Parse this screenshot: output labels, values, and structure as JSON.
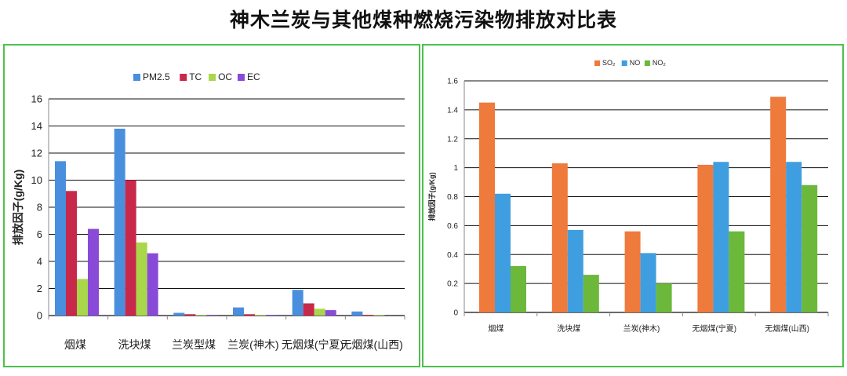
{
  "title": "神木兰炭与其他煤种燃烧污染物排放对比表",
  "colors": {
    "pm25": "#4a8fde",
    "tc": "#c8284a",
    "oc": "#a8d84a",
    "ec": "#8a4ad8",
    "so2": "#ee7a3c",
    "no": "#3f9ee0",
    "no2": "#6cb83a",
    "border": "#4cc24c"
  },
  "chart_data": [
    {
      "type": "bar",
      "title": "",
      "xlabel": "",
      "ylabel": "排放因子(g/Kg)",
      "ylim": [
        0,
        16
      ],
      "yticks": [
        0,
        2,
        4,
        6,
        8,
        10,
        12,
        14,
        16
      ],
      "grid": true,
      "legend_position": "top",
      "categories": [
        "烟煤",
        "洗块煤",
        "兰炭型煤",
        "兰炭(神木)",
        "无烟煤(宁夏)",
        "无烟煤(山西)"
      ],
      "series": [
        {
          "name": "PM2.5",
          "color_key": "pm25",
          "values": [
            11.4,
            13.8,
            0.2,
            0.6,
            1.9,
            0.3
          ]
        },
        {
          "name": "TC",
          "color_key": "tc",
          "values": [
            9.2,
            10.0,
            0.1,
            0.1,
            0.9,
            0.05
          ]
        },
        {
          "name": "OC",
          "color_key": "oc",
          "values": [
            2.7,
            5.4,
            0.05,
            0.05,
            0.5,
            0.05
          ]
        },
        {
          "name": "EC",
          "color_key": "ec",
          "values": [
            6.4,
            4.6,
            0.05,
            0.05,
            0.4,
            0.0
          ]
        }
      ]
    },
    {
      "type": "bar",
      "title": "",
      "xlabel": "",
      "ylabel": "排放因子(g/Kg)",
      "ylim": [
        0,
        1.6
      ],
      "yticks": [
        0,
        0.2,
        0.4,
        0.6,
        0.8,
        1,
        1.2,
        1.4,
        1.6
      ],
      "grid": true,
      "legend_position": "top",
      "categories": [
        "烟煤",
        "洗块煤",
        "兰炭(神木)",
        "无烟煤(宁夏)",
        "无烟煤(山西)"
      ],
      "series": [
        {
          "name": "SO₂",
          "color_key": "so2",
          "values": [
            1.45,
            1.03,
            0.56,
            1.02,
            1.49
          ]
        },
        {
          "name": "NO",
          "color_key": "no",
          "values": [
            0.82,
            0.57,
            0.41,
            1.04,
            1.04
          ]
        },
        {
          "name": "NO₂",
          "color_key": "no2",
          "values": [
            0.32,
            0.26,
            0.2,
            0.56,
            0.88
          ]
        }
      ]
    }
  ]
}
